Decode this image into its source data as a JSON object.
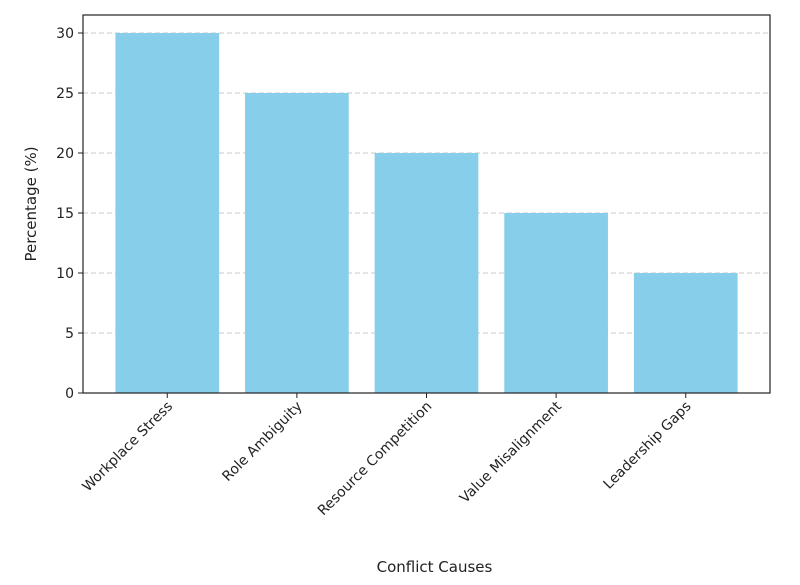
{
  "chart_data": {
    "type": "bar",
    "categories": [
      "Workplace Stress",
      "Role Ambiguity",
      "Resource Competition",
      "Value Misalignment",
      "Leadership Gaps"
    ],
    "values": [
      30,
      25,
      20,
      15,
      10
    ],
    "title": "",
    "xlabel": "Conflict Causes",
    "ylabel": "Percentage (%)",
    "ylim": [
      0,
      31.5
    ],
    "yticks": [
      0,
      5,
      10,
      15,
      20,
      25,
      30
    ],
    "grid": "y-dashed",
    "legend": "none",
    "bar_color": "#87CEEB",
    "grid_color": "#c8c8c8",
    "axis_color": "#222222"
  }
}
